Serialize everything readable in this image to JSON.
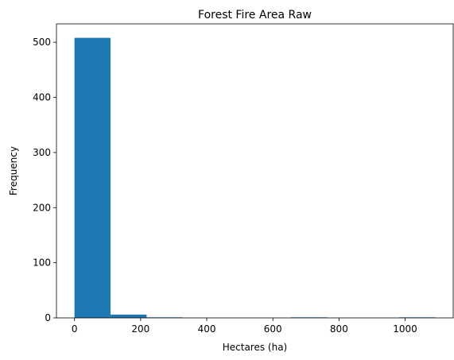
{
  "chart_data": {
    "type": "bar",
    "title": "Forest Fire Area Raw",
    "xlabel": "Hectares (ha)",
    "ylabel": "Frequency",
    "bin_edges": [
      0,
      109.08,
      218.16,
      327.24,
      436.32,
      545.4,
      654.48,
      763.56,
      872.64,
      981.72,
      1090.8
    ],
    "values": [
      508,
      6,
      1,
      0,
      0,
      0,
      1,
      0,
      0,
      1
    ],
    "xlim": [
      -54.54,
      1145.34
    ],
    "ylim": [
      0,
      533.4
    ],
    "xticks": [
      0,
      200,
      400,
      600,
      800,
      1000
    ],
    "yticks": [
      0,
      100,
      200,
      300,
      400,
      500
    ],
    "bar_color": "#1f77b4",
    "grid": false
  }
}
